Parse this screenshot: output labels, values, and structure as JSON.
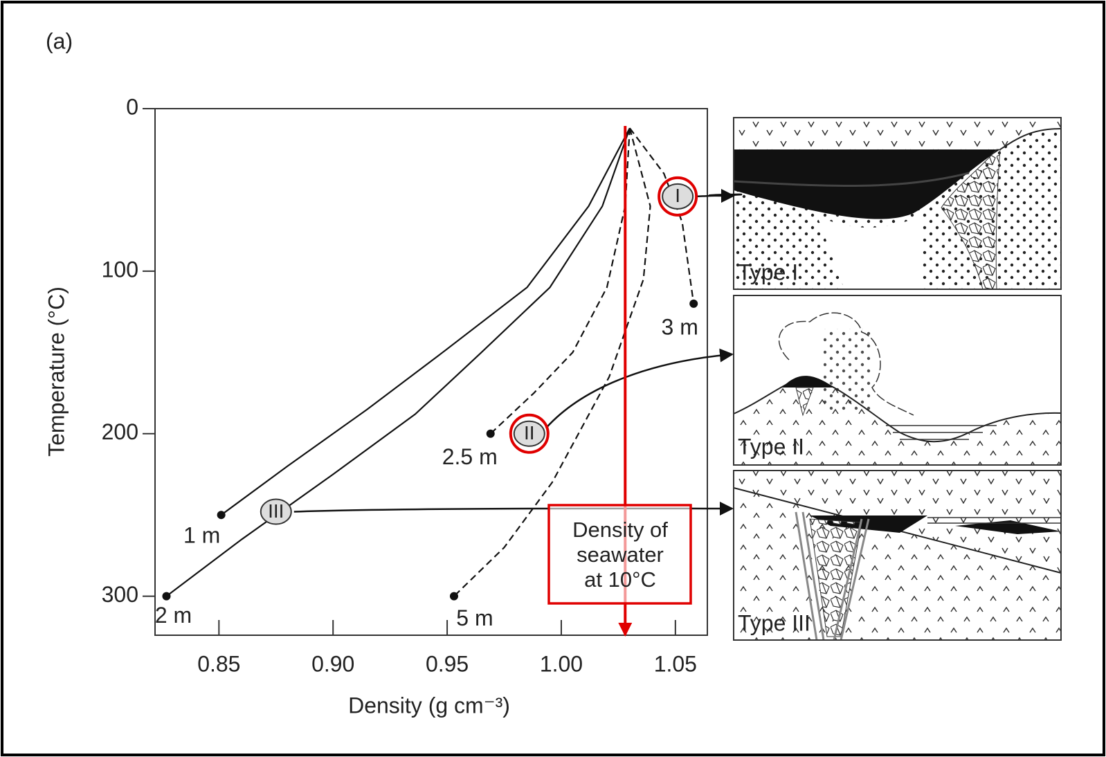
{
  "chart_data": {
    "type": "line",
    "figure_label": "(a)",
    "xlabel": "Density (g cm⁻³)",
    "ylabel": "Temperature (°C)",
    "xlim": [
      0.822,
      1.064
    ],
    "ylim": [
      0,
      324
    ],
    "y_inverted": true,
    "xticks": [
      0.85,
      {
        "value": 0.9,
        "label": "0.90"
      },
      0.95,
      {
        "value": 1.0,
        "label": "1.00"
      },
      1.05
    ],
    "yticks": [
      0,
      100,
      200,
      300
    ],
    "series": [
      {
        "name": "1 m",
        "color": "#111111",
        "style": "solid",
        "x": [
          1.03,
          1.012,
          0.985,
          0.948,
          0.915,
          0.88,
          0.851
        ],
        "values": [
          12,
          60,
          110,
          150,
          185,
          220,
          250
        ]
      },
      {
        "name": "2 m",
        "color": "#111111",
        "style": "solid",
        "x": [
          1.03,
          1.018,
          0.995,
          0.965,
          0.936,
          0.9,
          0.86,
          0.827
        ],
        "values": [
          12,
          60,
          110,
          150,
          188,
          225,
          265,
          300
        ]
      },
      {
        "name": "2.5 m",
        "color": "#111111",
        "style": "dashed",
        "x": [
          1.03,
          1.028,
          1.02,
          1.005,
          0.988,
          0.969
        ],
        "values": [
          12,
          60,
          110,
          150,
          175,
          200
        ]
      },
      {
        "name": "5 m",
        "color": "#111111",
        "style": "dashed",
        "x": [
          1.03,
          1.039,
          1.036,
          1.021,
          0.996,
          0.975,
          0.953
        ],
        "values": [
          12,
          60,
          105,
          165,
          230,
          270,
          300
        ]
      },
      {
        "name": "3 m",
        "color": "#111111",
        "style": "dashed",
        "x": [
          1.03,
          1.045,
          1.053,
          1.058
        ],
        "values": [
          12,
          40,
          70,
          120
        ]
      }
    ],
    "markers": [
      {
        "label": "I",
        "x": 1.051,
        "y": 54,
        "highlight": true
      },
      {
        "label": "II",
        "x": 0.986,
        "y": 200,
        "highlight": true
      },
      {
        "label": "III",
        "x": 0.875,
        "y": 248,
        "highlight": false
      }
    ],
    "reference_line": {
      "x": 1.028,
      "color": "#e00000",
      "label_lines": [
        "Density of",
        "seawater",
        "at 10°C"
      ]
    },
    "panels": [
      {
        "label": "Type I"
      },
      {
        "label": "Type II"
      },
      {
        "label": "Type III"
      }
    ]
  }
}
